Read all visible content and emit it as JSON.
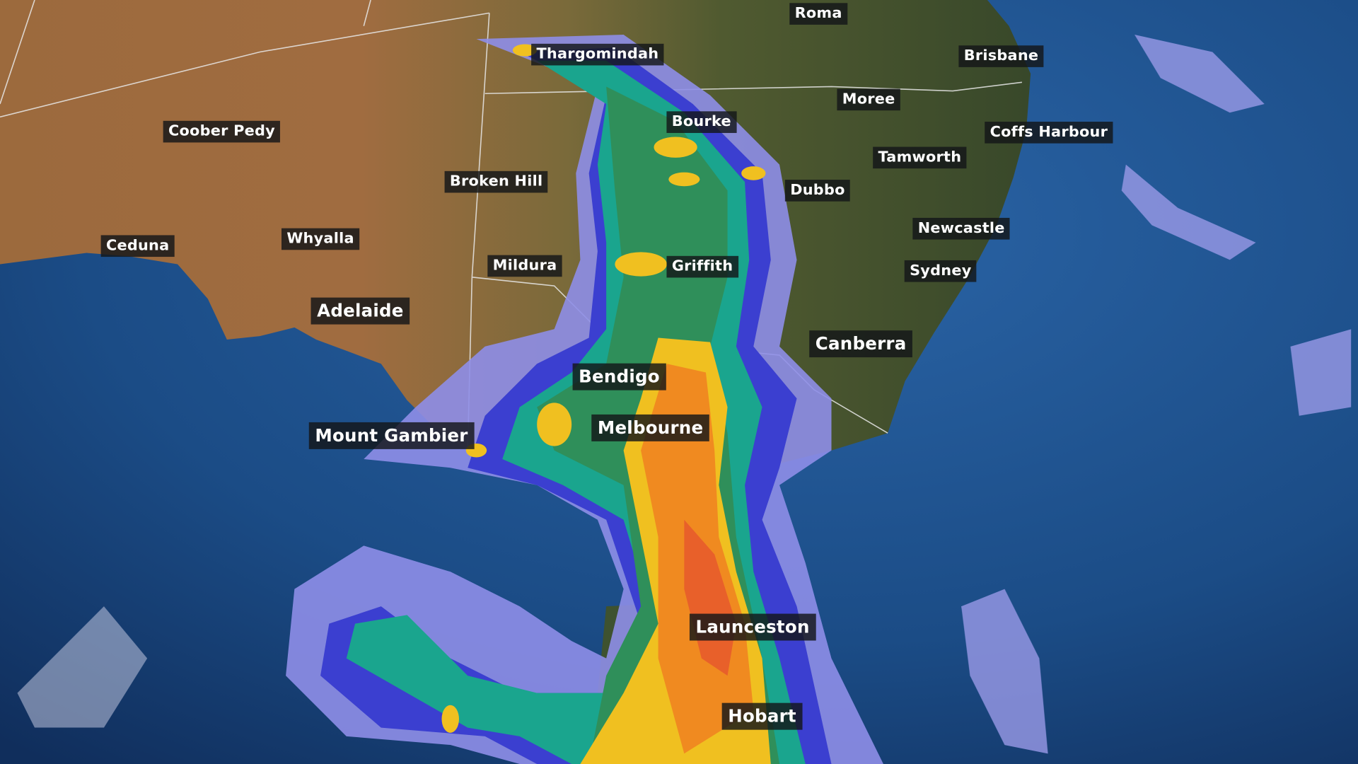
{
  "map": {
    "type": "weather radar / rainfall map",
    "colors": {
      "ocean": "#1b4c86",
      "land_arid": "#9c6a3d",
      "land_green": "#44552c",
      "rain_light": "#8e8ee8",
      "rain_blue": "#3b3fd0",
      "rain_teal": "#1aa58e",
      "rain_green": "#2f8f5a",
      "rain_yellow": "#f0c020",
      "rain_orange": "#f08a20",
      "rain_red": "#e8602a",
      "border": "#e8e8e8"
    },
    "labels": [
      {
        "name": "Roma",
        "size": "normal"
      },
      {
        "name": "Thargomindah",
        "size": "normal"
      },
      {
        "name": "Brisbane",
        "size": "normal"
      },
      {
        "name": "Moree",
        "size": "normal"
      },
      {
        "name": "Coober Pedy",
        "size": "normal"
      },
      {
        "name": "Bourke",
        "size": "normal"
      },
      {
        "name": "Coffs Harbour",
        "size": "normal"
      },
      {
        "name": "Tamworth",
        "size": "normal"
      },
      {
        "name": "Broken Hill",
        "size": "normal"
      },
      {
        "name": "Dubbo",
        "size": "normal"
      },
      {
        "name": "Newcastle",
        "size": "normal"
      },
      {
        "name": "Ceduna",
        "size": "normal"
      },
      {
        "name": "Whyalla",
        "size": "normal"
      },
      {
        "name": "Mildura",
        "size": "normal"
      },
      {
        "name": "Griffith",
        "size": "normal"
      },
      {
        "name": "Sydney",
        "size": "normal"
      },
      {
        "name": "Adelaide",
        "size": "big"
      },
      {
        "name": "Canberra",
        "size": "big"
      },
      {
        "name": "Bendigo",
        "size": "big"
      },
      {
        "name": "Melbourne",
        "size": "big"
      },
      {
        "name": "Mount Gambier",
        "size": "big"
      },
      {
        "name": "Launceston",
        "size": "big"
      },
      {
        "name": "Hobart",
        "size": "big"
      }
    ]
  }
}
